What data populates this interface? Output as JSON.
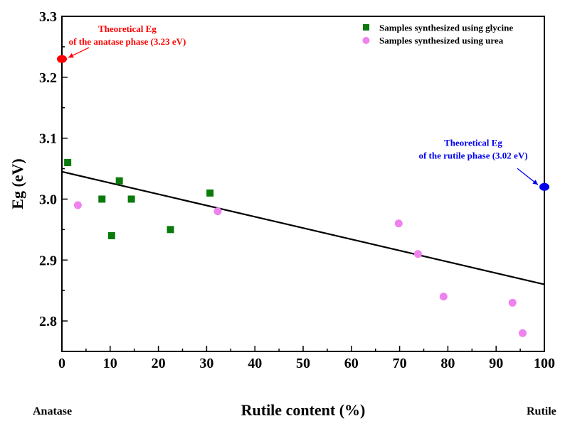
{
  "chart_data": {
    "type": "scatter",
    "xlabel": "Rutile content (%)",
    "ylabel": "Eg (eV)",
    "xlim": [
      0,
      100
    ],
    "ylim": [
      2.75,
      3.3
    ],
    "x_ticks": [
      0,
      10,
      20,
      30,
      40,
      50,
      60,
      70,
      80,
      90,
      100
    ],
    "y_ticks": [
      2.8,
      2.9,
      3.0,
      3.1,
      3.2,
      3.3
    ],
    "grid": false,
    "legend_position": "top-right",
    "x_end_labels": {
      "left": "Anatase",
      "right": "Rutile"
    },
    "series": [
      {
        "name": "Samples synthesized using glycine",
        "marker": "square",
        "color": "#0a7a0a",
        "points": [
          {
            "x": 1.2,
            "y": 3.06
          },
          {
            "x": 8.3,
            "y": 3.0
          },
          {
            "x": 10.3,
            "y": 2.94
          },
          {
            "x": 11.9,
            "y": 3.03
          },
          {
            "x": 14.4,
            "y": 3.0
          },
          {
            "x": 22.5,
            "y": 2.95
          },
          {
            "x": 30.7,
            "y": 3.01
          }
        ]
      },
      {
        "name": "Samples synthesized using urea",
        "marker": "circle",
        "color": "#ee82ee",
        "points": [
          {
            "x": 3.3,
            "y": 2.99
          },
          {
            "x": 32.3,
            "y": 2.98
          },
          {
            "x": 69.8,
            "y": 2.96
          },
          {
            "x": 73.8,
            "y": 2.91
          },
          {
            "x": 79.1,
            "y": 2.84
          },
          {
            "x": 93.4,
            "y": 2.83
          },
          {
            "x": 95.5,
            "y": 2.78
          }
        ]
      }
    ],
    "fit_line": {
      "color": "#000000",
      "x": [
        0,
        100
      ],
      "y": [
        3.045,
        2.86
      ]
    },
    "reference_points": [
      {
        "x": 0,
        "y": 3.23,
        "color": "#ff0000",
        "label_lines": [
          "Theoretical Eg",
          "of the anatase phase (3.23 eV)"
        ]
      },
      {
        "x": 100,
        "y": 3.02,
        "color": "#0000ee",
        "label_lines": [
          "Theoretical Eg",
          "of the rutile phase (3.02 eV)"
        ]
      }
    ]
  }
}
